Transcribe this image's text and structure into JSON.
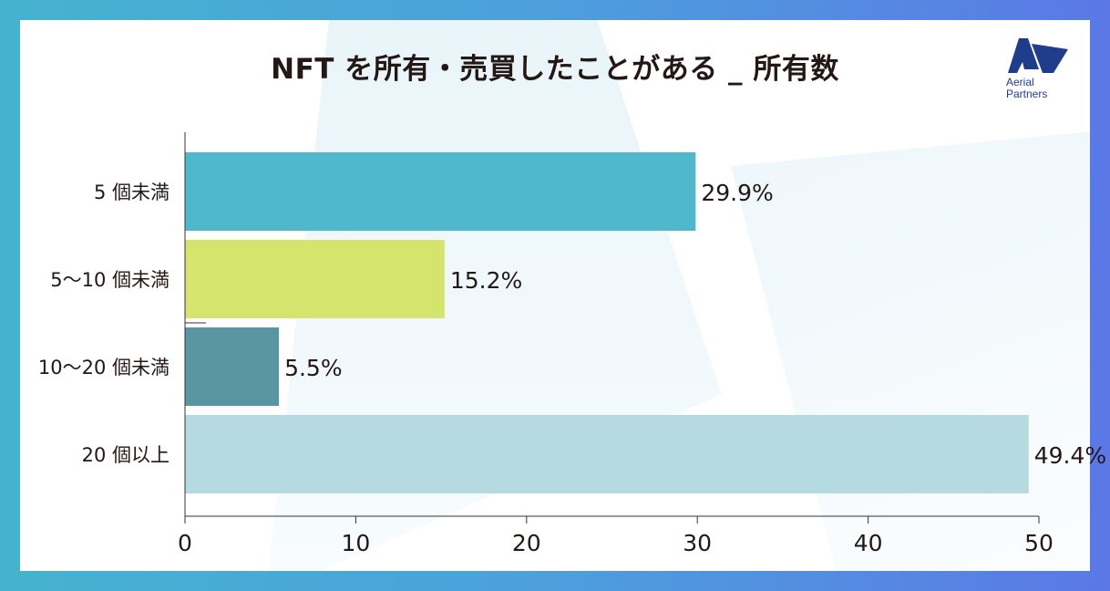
{
  "title": "NFT を所有・売買したことがある _ 所有数",
  "logo": {
    "line1": "Aerial",
    "line2": "Partners"
  },
  "colors": {
    "frame_start": "#45b3cf",
    "frame_end": "#5b78e6",
    "logo": "#1f3d8a"
  },
  "chart_data": {
    "type": "bar",
    "orientation": "horizontal",
    "title": "NFT を所有・売買したことがある _ 所有数",
    "categories": [
      "5 個未満",
      "5〜10 個未満",
      "10〜20 個未満",
      "20 個以上"
    ],
    "values": [
      29.9,
      15.2,
      5.5,
      49.4
    ],
    "value_labels": [
      "29.9%",
      "15.2%",
      "5.5%",
      "49.4%"
    ],
    "bar_colors": [
      "#4fb9cb",
      "#d5e46d",
      "#5a95a2",
      "#b5dae0"
    ],
    "xlim": [
      0,
      50
    ],
    "xticks": [
      0,
      10,
      20,
      30,
      40,
      50
    ],
    "xlabel": "",
    "ylabel": "",
    "grid": false,
    "legend": "none"
  }
}
